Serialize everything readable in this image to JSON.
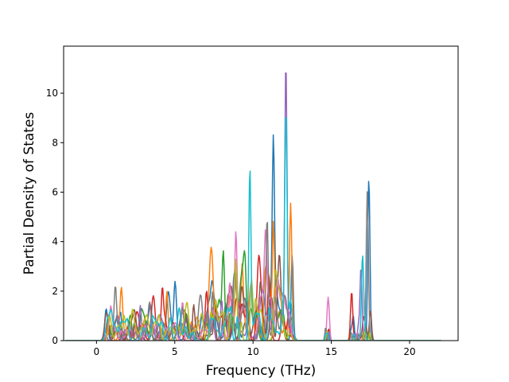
{
  "chart_data": {
    "type": "line",
    "title": "",
    "xlabel": "Frequency (THz)",
    "ylabel": "Partial Density of States",
    "xlim": [
      -2.1,
      23.1
    ],
    "ylim": [
      0,
      11.9
    ],
    "xticks": [
      0,
      5,
      10,
      15,
      20
    ],
    "yticks": [
      0,
      2,
      4,
      6,
      8,
      10
    ],
    "grid": false,
    "legend": "none",
    "x_range_of_curves": [
      -2.0,
      22.0
    ],
    "series_colors": [
      "#1f77b4",
      "#ff7f0e",
      "#2ca02c",
      "#d62728",
      "#9467bd",
      "#8c564b",
      "#e377c2",
      "#7f7f7f",
      "#bcbd22",
      "#17becf"
    ],
    "notable_peaks": [
      {
        "x": 12.1,
        "y": 11.4,
        "color": "#9467bd"
      },
      {
        "x": 12.1,
        "y": 8.4,
        "color": "#17becf"
      },
      {
        "x": 9.8,
        "y": 7.0,
        "color": "#17becf"
      },
      {
        "x": 11.3,
        "y": 6.85,
        "color": "#1f77b4"
      },
      {
        "x": 17.4,
        "y": 6.45,
        "color": "#1f77b4"
      },
      {
        "x": 17.3,
        "y": 6.05,
        "color": "#7f7f7f"
      },
      {
        "x": 11.3,
        "y": 4.55,
        "color": "#ff7f0e"
      },
      {
        "x": 10.9,
        "y": 4.75,
        "color": "#7f7f7f"
      },
      {
        "x": 12.4,
        "y": 4.3,
        "color": "#ff7f0e"
      },
      {
        "x": 8.9,
        "y": 4.2,
        "color": "#e377c2"
      },
      {
        "x": 17.0,
        "y": 3.5,
        "color": "#17becf"
      },
      {
        "x": 12.5,
        "y": 3.45,
        "color": "#1f77b4"
      },
      {
        "x": 8.9,
        "y": 3.3,
        "color": "#bcbd22"
      },
      {
        "x": 10.8,
        "y": 3.15,
        "color": "#e377c2"
      },
      {
        "x": 16.9,
        "y": 3.0,
        "color": "#9467bd"
      },
      {
        "x": 9.9,
        "y": 2.4,
        "color": "#bcbd22"
      },
      {
        "x": 8.5,
        "y": 2.25,
        "color": "#e377c2"
      },
      {
        "x": 8.1,
        "y": 2.2,
        "color": "#2ca02c"
      },
      {
        "x": 9.5,
        "y": 2.1,
        "color": "#2ca02c"
      },
      {
        "x": 16.3,
        "y": 2.0,
        "color": "#d62728"
      },
      {
        "x": 4.5,
        "y": 2.0,
        "color": "#ff7f0e"
      },
      {
        "x": 10.5,
        "y": 1.95,
        "color": "#8c564b"
      },
      {
        "x": 7.4,
        "y": 1.8,
        "color": "#7f7f7f"
      },
      {
        "x": 11.7,
        "y": 1.75,
        "color": "#8c564b"
      },
      {
        "x": 14.8,
        "y": 1.65,
        "color": "#e377c2"
      },
      {
        "x": 4.2,
        "y": 1.65,
        "color": "#d62728"
      },
      {
        "x": 5.0,
        "y": 1.65,
        "color": "#1f77b4"
      },
      {
        "x": 5.5,
        "y": 1.6,
        "color": "#e377c2"
      },
      {
        "x": 1.2,
        "y": 1.35,
        "color": "#7f7f7f"
      },
      {
        "x": 1.6,
        "y": 1.3,
        "color": "#ff7f0e"
      },
      {
        "x": 2.8,
        "y": 1.4,
        "color": "#9467bd"
      },
      {
        "x": 6.2,
        "y": 1.3,
        "color": "#8c564b"
      },
      {
        "x": 17.5,
        "y": 1.25,
        "color": "#8c564b"
      },
      {
        "x": 16.4,
        "y": 1.0,
        "color": "#1f77b4"
      },
      {
        "x": 17.1,
        "y": 0.9,
        "color": "#d62728"
      },
      {
        "x": 0.9,
        "y": 0.85,
        "color": "#e377c2"
      }
    ]
  }
}
